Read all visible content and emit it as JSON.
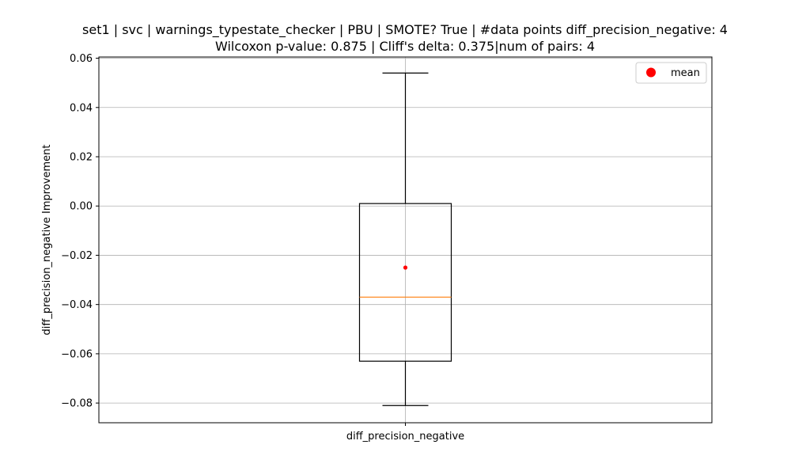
{
  "chart_data": {
    "type": "box",
    "title_line1": "set1 | svc | warnings_typestate_checker | PBU | SMOTE? True | #data points diff_precision_negative: 4",
    "title_line2": "Wilcoxon p-value: 0.875 | Cliff's delta: 0.375|num of pairs: 4",
    "xlabel": "",
    "ylabel": "diff_precision_negative Improvement",
    "categories": [
      "diff_precision_negative"
    ],
    "ylim": [
      -0.088,
      0.0605
    ],
    "yticks": [
      -0.08,
      -0.06,
      -0.04,
      -0.02,
      0.0,
      0.02,
      0.04,
      0.06
    ],
    "ytick_labels": [
      "−0.08",
      "−0.06",
      "−0.04",
      "−0.02",
      "0.00",
      "0.02",
      "0.04",
      "0.06"
    ],
    "grid": true,
    "legend": {
      "position": "top-right",
      "entries": [
        {
          "label": "mean",
          "color": "#ff0000"
        }
      ]
    },
    "boxes": [
      {
        "name": "diff_precision_negative",
        "whisker_low": -0.081,
        "q1": -0.063,
        "median": -0.037,
        "q3": 0.001,
        "whisker_high": 0.054,
        "mean": -0.025
      }
    ],
    "colors": {
      "box": "#000000",
      "median": "#ff7f0e",
      "mean": "#ff0000",
      "grid": "#b0b0b0"
    }
  }
}
